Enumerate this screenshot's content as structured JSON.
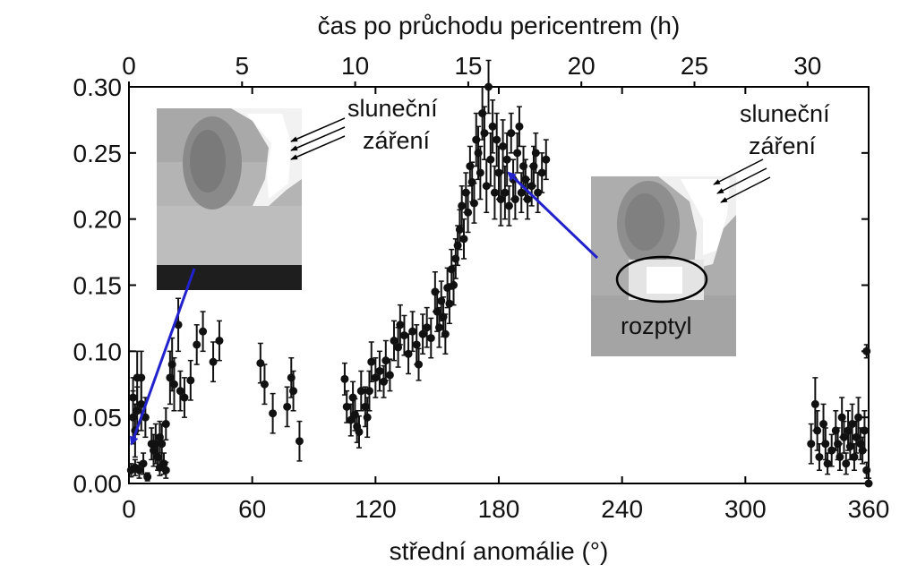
{
  "chart_data": {
    "type": "scatter",
    "xlabel": "střední anomálie (°)",
    "x2label": "čas po průchodu pericentrem (h)",
    "ylabel": "",
    "xlim": [
      0,
      360
    ],
    "ylim": [
      0,
      0.3
    ],
    "x2lim": [
      0,
      32.7
    ],
    "x_ticks": [
      "0",
      "60",
      "120",
      "180",
      "240",
      "300",
      "360"
    ],
    "x2_ticks": [
      "0",
      "5",
      "10",
      "15",
      "20",
      "25",
      "30"
    ],
    "y_ticks": [
      "0.00",
      "0.05",
      "0.10",
      "0.15",
      "0.20",
      "0.25",
      "0.30"
    ],
    "grid": false,
    "annotations": {
      "left_inset": {
        "line1": "sluneční",
        "line2": "záření"
      },
      "right_inset": {
        "line1": "sluneční",
        "line2": "záření",
        "scatter_label": "rozptyl"
      }
    },
    "series": [
      {
        "points": [
          [
            1,
            0.01,
            0.005
          ],
          [
            2,
            0.05,
            0.02
          ],
          [
            2,
            0.065,
            0.015
          ],
          [
            3,
            0.04,
            0.02
          ],
          [
            3,
            0.012,
            0.006
          ],
          [
            4,
            0.08,
            0.02
          ],
          [
            4,
            0.055,
            0.018
          ],
          [
            5,
            0.01,
            0.006
          ],
          [
            6,
            0.06,
            0.02
          ],
          [
            6,
            0.08,
            0.02
          ],
          [
            7,
            0.015,
            0.008
          ],
          [
            8,
            0.05,
            0.015
          ],
          [
            9,
            0.005,
            0.003
          ],
          [
            11,
            0.03,
            0.012
          ],
          [
            12,
            0.025,
            0.012
          ],
          [
            13,
            0.03,
            0.015
          ],
          [
            14,
            0.02,
            0.01
          ],
          [
            15,
            0.035,
            0.012
          ],
          [
            15,
            0.012,
            0.006
          ],
          [
            16,
            0.03,
            0.015
          ],
          [
            17,
            0.015,
            0.008
          ],
          [
            18,
            0.045,
            0.012
          ],
          [
            18,
            0.01,
            0.006
          ],
          [
            20,
            0.08,
            0.02
          ],
          [
            21,
            0.09,
            0.02
          ],
          [
            22,
            0.075,
            0.02
          ],
          [
            24,
            0.12,
            0.02
          ],
          [
            25,
            0.07,
            0.015
          ],
          [
            27,
            0.065,
            0.015
          ],
          [
            30,
            0.078,
            0.015
          ],
          [
            33,
            0.105,
            0.015
          ],
          [
            36,
            0.115,
            0.015
          ],
          [
            41,
            0.092,
            0.015
          ],
          [
            44,
            0.108,
            0.015
          ],
          [
            64,
            0.091,
            0.015
          ],
          [
            66,
            0.075,
            0.015
          ],
          [
            70,
            0.053,
            0.015
          ],
          [
            77,
            0.058,
            0.015
          ],
          [
            79,
            0.08,
            0.015
          ],
          [
            80,
            0.07,
            0.015
          ],
          [
            83,
            0.032,
            0.015
          ],
          [
            105,
            0.079,
            0.012
          ],
          [
            106,
            0.058,
            0.012
          ],
          [
            108,
            0.048,
            0.012
          ],
          [
            109,
            0.065,
            0.012
          ],
          [
            110,
            0.052,
            0.012
          ],
          [
            111,
            0.043,
            0.012
          ],
          [
            112,
            0.039,
            0.012
          ],
          [
            113,
            0.07,
            0.015
          ],
          [
            115,
            0.058,
            0.015
          ],
          [
            116,
            0.05,
            0.015
          ],
          [
            117,
            0.07,
            0.015
          ],
          [
            118,
            0.092,
            0.015
          ],
          [
            120,
            0.08,
            0.015
          ],
          [
            122,
            0.085,
            0.015
          ],
          [
            124,
            0.077,
            0.012
          ],
          [
            125,
            0.093,
            0.015
          ],
          [
            127,
            0.082,
            0.012
          ],
          [
            129,
            0.108,
            0.015
          ],
          [
            131,
            0.103,
            0.015
          ],
          [
            132,
            0.12,
            0.015
          ],
          [
            134,
            0.112,
            0.015
          ],
          [
            136,
            0.098,
            0.015
          ],
          [
            138,
            0.115,
            0.015
          ],
          [
            140,
            0.105,
            0.015
          ],
          [
            141,
            0.09,
            0.012
          ],
          [
            143,
            0.113,
            0.015
          ],
          [
            145,
            0.118,
            0.015
          ],
          [
            147,
            0.11,
            0.015
          ],
          [
            149,
            0.145,
            0.015
          ],
          [
            150,
            0.13,
            0.015
          ],
          [
            151,
            0.118,
            0.015
          ],
          [
            152,
            0.138,
            0.015
          ],
          [
            153,
            0.126,
            0.015
          ],
          [
            154,
            0.113,
            0.015
          ],
          [
            155,
            0.148,
            0.015
          ],
          [
            156,
            0.136,
            0.015
          ],
          [
            157,
            0.162,
            0.015
          ],
          [
            158,
            0.15,
            0.015
          ],
          [
            159,
            0.17,
            0.015
          ],
          [
            160,
            0.18,
            0.015
          ],
          [
            161,
            0.192,
            0.015
          ],
          [
            162,
            0.21,
            0.015
          ],
          [
            163,
            0.185,
            0.015
          ],
          [
            164,
            0.22,
            0.015
          ],
          [
            165,
            0.205,
            0.015
          ],
          [
            166,
            0.24,
            0.015
          ],
          [
            167,
            0.228,
            0.015
          ],
          [
            168,
            0.212,
            0.015
          ],
          [
            169,
            0.26,
            0.02
          ],
          [
            170,
            0.25,
            0.02
          ],
          [
            171,
            0.235,
            0.02
          ],
          [
            172,
            0.28,
            0.02
          ],
          [
            173,
            0.265,
            0.02
          ],
          [
            174,
            0.225,
            0.02
          ],
          [
            175,
            0.3,
            0.02
          ],
          [
            176,
            0.245,
            0.02
          ],
          [
            177,
            0.27,
            0.02
          ],
          [
            178,
            0.22,
            0.02
          ],
          [
            179,
            0.26,
            0.02
          ],
          [
            180,
            0.235,
            0.02
          ],
          [
            181,
            0.215,
            0.02
          ],
          [
            182,
            0.255,
            0.02
          ],
          [
            183,
            0.22,
            0.02
          ],
          [
            184,
            0.245,
            0.02
          ],
          [
            185,
            0.21,
            0.015
          ],
          [
            186,
            0.265,
            0.015
          ],
          [
            187,
            0.23,
            0.015
          ],
          [
            188,
            0.215,
            0.015
          ],
          [
            189,
            0.25,
            0.015
          ],
          [
            190,
            0.27,
            0.015
          ],
          [
            191,
            0.22,
            0.015
          ],
          [
            192,
            0.24,
            0.015
          ],
          [
            193,
            0.23,
            0.015
          ],
          [
            194,
            0.215,
            0.015
          ],
          [
            196,
            0.225,
            0.015
          ],
          [
            197,
            0.24,
            0.015
          ],
          [
            198,
            0.25,
            0.015
          ],
          [
            199,
            0.22,
            0.015
          ],
          [
            201,
            0.235,
            0.015
          ],
          [
            203,
            0.245,
            0.015
          ],
          [
            332,
            0.03,
            0.015
          ],
          [
            334,
            0.06,
            0.02
          ],
          [
            335,
            0.04,
            0.015
          ],
          [
            336,
            0.02,
            0.01
          ],
          [
            338,
            0.045,
            0.015
          ],
          [
            339,
            0.03,
            0.012
          ],
          [
            340,
            0.015,
            0.008
          ],
          [
            342,
            0.025,
            0.012
          ],
          [
            344,
            0.04,
            0.015
          ],
          [
            345,
            0.03,
            0.012
          ],
          [
            346,
            0.02,
            0.01
          ],
          [
            347,
            0.05,
            0.015
          ],
          [
            348,
            0.035,
            0.012
          ],
          [
            349,
            0.015,
            0.008
          ],
          [
            350,
            0.04,
            0.015
          ],
          [
            351,
            0.028,
            0.01
          ],
          [
            352,
            0.045,
            0.015
          ],
          [
            353,
            0.02,
            0.01
          ],
          [
            354,
            0.035,
            0.012
          ],
          [
            355,
            0.05,
            0.015
          ],
          [
            356,
            0.03,
            0.012
          ],
          [
            357,
            0.025,
            0.01
          ],
          [
            358,
            0.04,
            0.015
          ],
          [
            359,
            0.01,
            0.006
          ],
          [
            359,
            0.1,
            0.005
          ],
          [
            360,
            0.0,
            0.004
          ]
        ]
      }
    ]
  }
}
